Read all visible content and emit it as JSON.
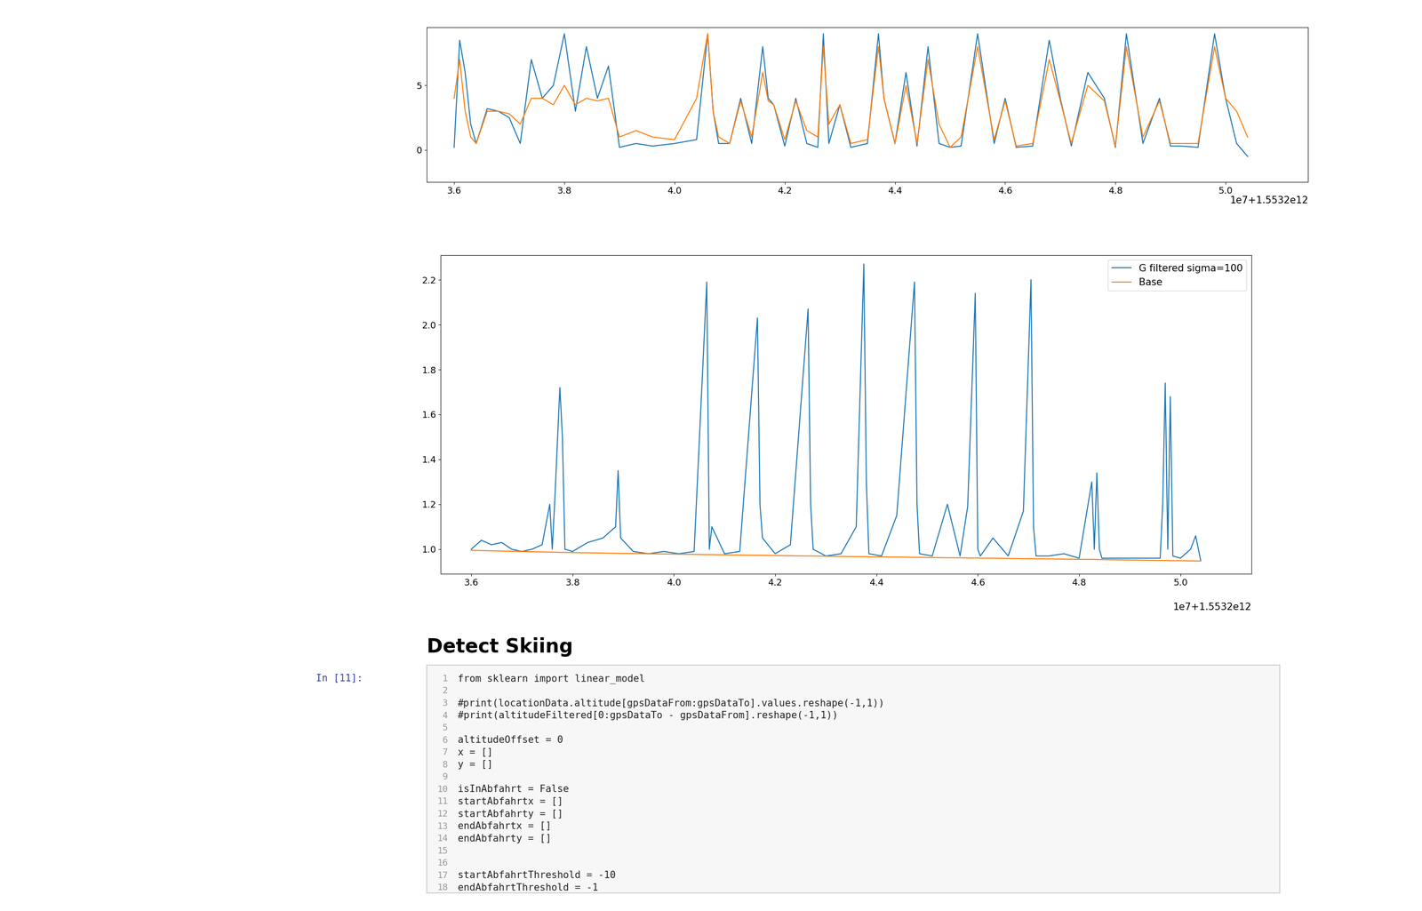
{
  "chart_data": [
    {
      "type": "line",
      "x_offset_label": "1e7+1.5532e12",
      "x": [
        3.6,
        3.61,
        3.62,
        3.63,
        3.64,
        3.66,
        3.68,
        3.7,
        3.72,
        3.74,
        3.76,
        3.78,
        3.8,
        3.82,
        3.84,
        3.86,
        3.88,
        3.9,
        3.93,
        3.96,
        4.0,
        4.04,
        4.06,
        4.07,
        4.08,
        4.1,
        4.12,
        4.14,
        4.16,
        4.17,
        4.18,
        4.2,
        4.22,
        4.24,
        4.26,
        4.27,
        4.28,
        4.3,
        4.32,
        4.35,
        4.37,
        4.38,
        4.4,
        4.42,
        4.44,
        4.46,
        4.48,
        4.5,
        4.52,
        4.55,
        4.58,
        4.6,
        4.62,
        4.65,
        4.68,
        4.7,
        4.72,
        4.75,
        4.78,
        4.8,
        4.82,
        4.85,
        4.88,
        4.9,
        4.92,
        4.95,
        4.98,
        5.0,
        5.02,
        5.04
      ],
      "series": [
        {
          "color": "#1f77b4",
          "values": [
            0.2,
            8.5,
            6,
            2,
            0.5,
            3.2,
            3,
            2.5,
            0.5,
            7,
            4,
            5,
            9,
            3,
            8,
            4,
            6.5,
            0.2,
            0.5,
            0.3,
            0.5,
            0.8,
            9,
            3,
            0.5,
            0.5,
            4,
            0.5,
            8,
            4,
            3.5,
            0.3,
            4,
            0.5,
            0.2,
            9,
            0.5,
            3.5,
            0.2,
            0.5,
            9,
            4,
            0.5,
            6,
            0.3,
            8,
            0.5,
            0.2,
            0.3,
            9,
            0.5,
            4,
            0.2,
            0.3,
            8.5,
            4,
            0.3,
            6,
            4,
            0.2,
            9,
            0.5,
            4,
            0.3,
            0.3,
            0.2,
            9,
            4,
            0.5,
            -0.5
          ]
        },
        {
          "color": "#ff7f0e",
          "values": [
            4,
            7,
            3,
            1,
            0.5,
            3,
            3,
            2.8,
            2,
            4,
            4,
            3.5,
            5,
            3.5,
            4,
            3.8,
            4,
            1,
            1.5,
            1,
            0.8,
            4,
            9,
            3,
            1,
            0.5,
            3.8,
            1,
            6,
            3.8,
            3.5,
            0.8,
            3.8,
            1.5,
            1,
            8,
            2,
            3.5,
            0.5,
            0.8,
            8,
            4,
            0.5,
            5,
            0.5,
            7,
            2,
            0.2,
            1,
            8,
            0.8,
            3.8,
            0.3,
            0.5,
            7,
            3.8,
            0.5,
            5,
            3.8,
            0.3,
            8,
            1,
            3.8,
            0.5,
            0.5,
            0.5,
            8,
            4,
            3,
            1
          ]
        }
      ],
      "xlim": [
        3.55,
        5.15
      ],
      "xticks": [
        {
          "value": 3.6,
          "label": "3.6"
        },
        {
          "value": 3.8,
          "label": "3.8"
        },
        {
          "value": 4.0,
          "label": "4.0"
        },
        {
          "value": 4.2,
          "label": "4.2"
        },
        {
          "value": 4.4,
          "label": "4.4"
        },
        {
          "value": 4.6,
          "label": "4.6"
        },
        {
          "value": 4.8,
          "label": "4.8"
        },
        {
          "value": 5.0,
          "label": "5.0"
        }
      ],
      "ylim": [
        -2.5,
        9.5
      ],
      "yticks": [
        0,
        5
      ],
      "grid": false
    },
    {
      "type": "line",
      "x_offset_label": "1e7+1.5532e12",
      "legend": "upper right",
      "x": [
        3.6,
        3.62,
        3.64,
        3.66,
        3.68,
        3.7,
        3.72,
        3.74,
        3.755,
        3.76,
        3.765,
        3.775,
        3.78,
        3.785,
        3.8,
        3.83,
        3.86,
        3.885,
        3.89,
        3.895,
        3.92,
        3.95,
        3.98,
        4.01,
        4.04,
        4.065,
        4.07,
        4.075,
        4.1,
        4.13,
        4.165,
        4.17,
        4.175,
        4.2,
        4.23,
        4.265,
        4.27,
        4.275,
        4.3,
        4.33,
        4.36,
        4.375,
        4.38,
        4.385,
        4.41,
        4.44,
        4.475,
        4.48,
        4.485,
        4.51,
        4.54,
        4.565,
        4.58,
        4.595,
        4.6,
        4.605,
        4.63,
        4.66,
        4.69,
        4.705,
        4.71,
        4.715,
        4.74,
        4.77,
        4.8,
        4.825,
        4.83,
        4.835,
        4.84,
        4.845,
        4.87,
        4.9,
        4.93,
        4.96,
        4.965,
        4.97,
        4.975,
        4.98,
        4.985,
        5.0,
        5.02,
        5.03,
        5.04
      ],
      "series": [
        {
          "name": "G filtered sigma=100",
          "color": "#1f77b4",
          "values": [
            1.0,
            1.04,
            1.02,
            1.03,
            1.0,
            0.99,
            1.0,
            1.02,
            1.2,
            1.0,
            1.22,
            1.72,
            1.5,
            1.0,
            0.99,
            1.03,
            1.05,
            1.1,
            1.35,
            1.05,
            0.99,
            0.98,
            0.99,
            0.98,
            0.99,
            2.19,
            1.0,
            1.1,
            0.98,
            0.99,
            2.03,
            1.2,
            1.05,
            0.98,
            1.02,
            2.07,
            1.2,
            1.0,
            0.97,
            0.98,
            1.1,
            2.27,
            1.3,
            0.98,
            0.97,
            1.15,
            2.19,
            1.2,
            0.98,
            0.97,
            1.2,
            0.97,
            1.19,
            2.14,
            1.0,
            0.97,
            1.05,
            0.97,
            1.17,
            2.2,
            1.1,
            0.97,
            0.97,
            0.98,
            0.96,
            1.3,
            1.0,
            1.34,
            1.0,
            0.96,
            0.96,
            0.96,
            0.96,
            0.96,
            1.2,
            1.74,
            1.0,
            1.68,
            0.97,
            0.96,
            1.0,
            1.06,
            0.95
          ]
        },
        {
          "name": "Base",
          "color": "#ff7f0e",
          "values": [
            0.995,
            0.994,
            0.993,
            0.992,
            0.991,
            0.99,
            0.989,
            0.988,
            0.987,
            0.987,
            0.987,
            0.986,
            0.986,
            0.986,
            0.985,
            0.984,
            0.983,
            0.982,
            0.982,
            0.981,
            0.981,
            0.98,
            0.979,
            0.978,
            0.977,
            0.976,
            0.976,
            0.976,
            0.975,
            0.974,
            0.973,
            0.973,
            0.973,
            0.972,
            0.971,
            0.97,
            0.97,
            0.97,
            0.969,
            0.968,
            0.967,
            0.967,
            0.967,
            0.966,
            0.966,
            0.965,
            0.964,
            0.964,
            0.964,
            0.963,
            0.962,
            0.962,
            0.961,
            0.961,
            0.961,
            0.96,
            0.96,
            0.959,
            0.958,
            0.958,
            0.958,
            0.957,
            0.957,
            0.956,
            0.955,
            0.955,
            0.955,
            0.954,
            0.954,
            0.954,
            0.953,
            0.952,
            0.951,
            0.95,
            0.95,
            0.95,
            0.95,
            0.949,
            0.949,
            0.949,
            0.948,
            0.948,
            0.947
          ]
        }
      ],
      "xlim": [
        3.54,
        5.14
      ],
      "xticks": [
        {
          "value": 3.6,
          "label": "3.6"
        },
        {
          "value": 3.8,
          "label": "3.8"
        },
        {
          "value": 4.0,
          "label": "4.0"
        },
        {
          "value": 4.2,
          "label": "4.2"
        },
        {
          "value": 4.4,
          "label": "4.4"
        },
        {
          "value": 4.6,
          "label": "4.6"
        },
        {
          "value": 4.8,
          "label": "4.8"
        },
        {
          "value": 5.0,
          "label": "5.0"
        }
      ],
      "ylim": [
        0.89,
        2.31
      ],
      "yticks": [
        {
          "value": 1.0,
          "label": "1.0"
        },
        {
          "value": 1.2,
          "label": "1.2"
        },
        {
          "value": 1.4,
          "label": "1.4"
        },
        {
          "value": 1.6,
          "label": "1.6"
        },
        {
          "value": 1.8,
          "label": "1.8"
        },
        {
          "value": 2.0,
          "label": "2.0"
        },
        {
          "value": 2.2,
          "label": "2.2"
        }
      ],
      "grid": false
    }
  ],
  "heading": "Detect Skiing",
  "cell": {
    "prompt": "In [11]:",
    "lines": [
      {
        "n": 1,
        "text": "from sklearn import linear_model"
      },
      {
        "n": 2
      },
      {
        "n": 3,
        "text": "#print(locationData.altitude[gpsDataFrom:gpsDataTo].values.reshape(-1,1))"
      },
      {
        "n": 4,
        "text": "#print(altitudeFiltered[0:gpsDataTo - gpsDataFrom].reshape(-1,1))"
      },
      {
        "n": 5
      },
      {
        "n": 6,
        "text": "altitudeOffset = 0"
      },
      {
        "n": 7,
        "text": "x = []"
      },
      {
        "n": 8,
        "text": "y = []"
      },
      {
        "n": 9
      },
      {
        "n": 10,
        "text": "isInAbfahrt = False"
      },
      {
        "n": 11,
        "text": "startAbfahrtx = []"
      },
      {
        "n": 12,
        "text": "startAbfahrty = []"
      },
      {
        "n": 13,
        "text": "endAbfahrtx = []"
      },
      {
        "n": 14,
        "text": "endAbfahrty = []"
      },
      {
        "n": 15
      },
      {
        "n": 16
      },
      {
        "n": 17,
        "text": "startAbfahrtThreshold = -10"
      },
      {
        "n": 18,
        "text": "endAbfahrtThreshold = -1"
      }
    ]
  }
}
